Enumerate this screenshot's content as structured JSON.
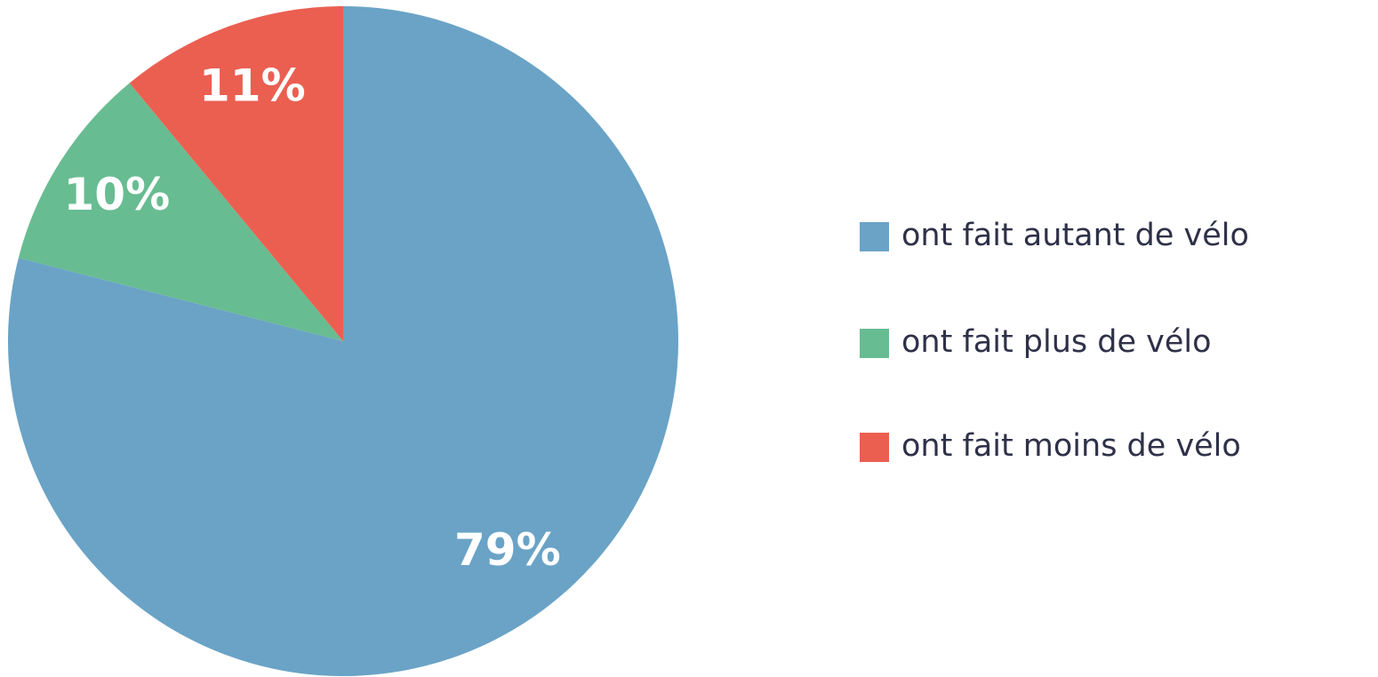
{
  "chart_data": {
    "type": "pie",
    "categories": [
      "ont fait autant de vélo",
      "ont fait plus de vélo",
      "ont fait moins de vélo"
    ],
    "values": [
      79,
      10,
      11
    ],
    "value_labels": [
      "79%",
      "10%",
      "11%"
    ],
    "colors": [
      "#6aa3c6",
      "#68bc91",
      "#eb5f51"
    ],
    "legend": "right"
  }
}
